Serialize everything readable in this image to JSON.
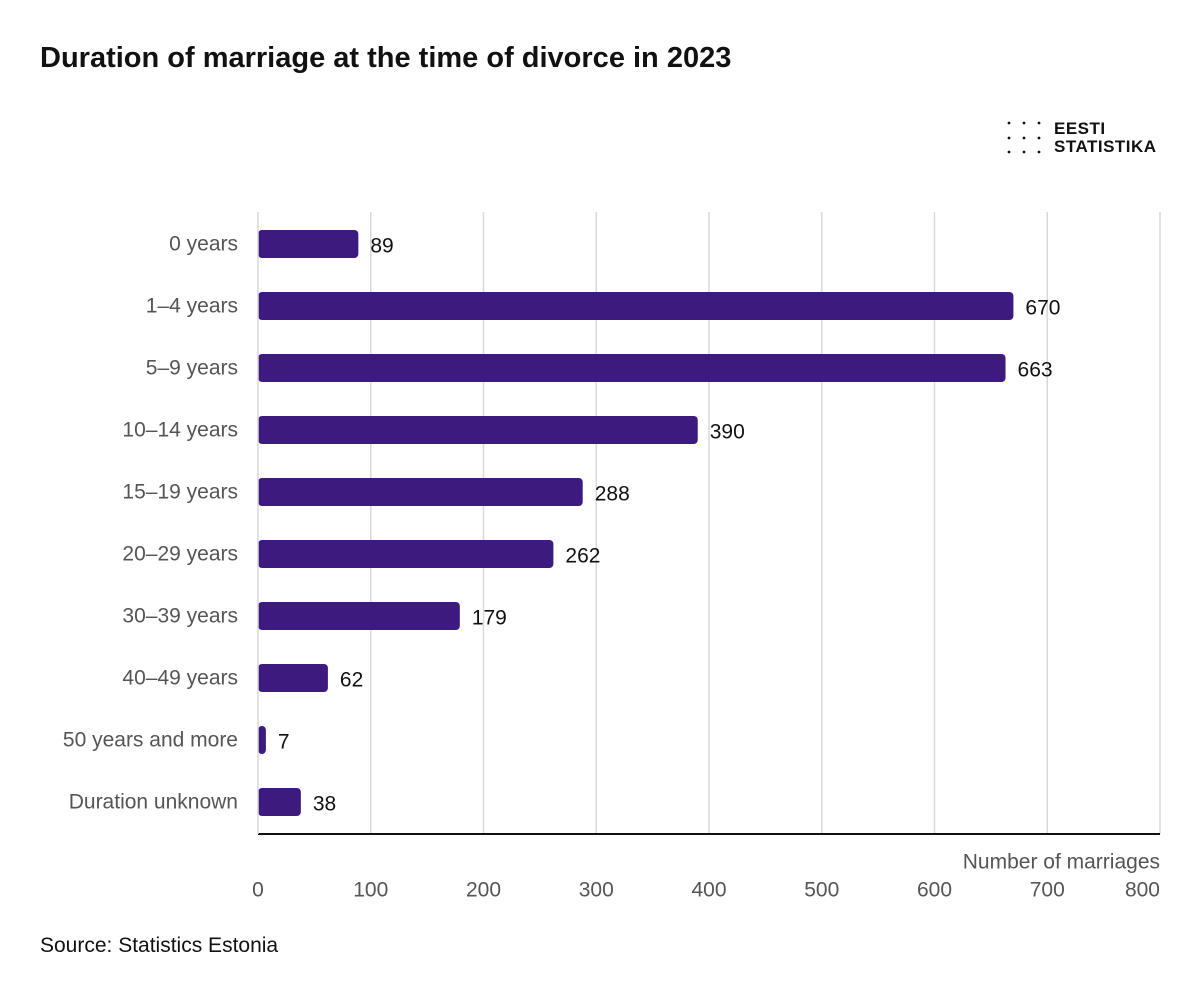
{
  "title": "Duration of marriage at the time of divorce in 2023",
  "logo": {
    "line1": "EESTI",
    "line2": "STATISTIKA"
  },
  "source": "Source: Statistics Estonia",
  "colors": {
    "bar": "#3d1a7e",
    "grid": "#d9d9d9",
    "axis": "#111111",
    "label": "#555555",
    "value": "#111111"
  },
  "chart_data": {
    "type": "bar",
    "orientation": "horizontal",
    "categories": [
      "0 years",
      "1–4 years",
      "5–9 years",
      "10–14 years",
      "15–19 years",
      "20–29 years",
      "30–39 years",
      "40–49 years",
      "50 years and more",
      "Duration unknown"
    ],
    "values": [
      89,
      670,
      663,
      390,
      288,
      262,
      179,
      62,
      7,
      38
    ],
    "xlabel": "Number of marriages",
    "xlim": [
      0,
      800
    ],
    "xticks": [
      0,
      100,
      200,
      300,
      400,
      500,
      600,
      700,
      800
    ],
    "grid": true,
    "data_labels": true
  }
}
